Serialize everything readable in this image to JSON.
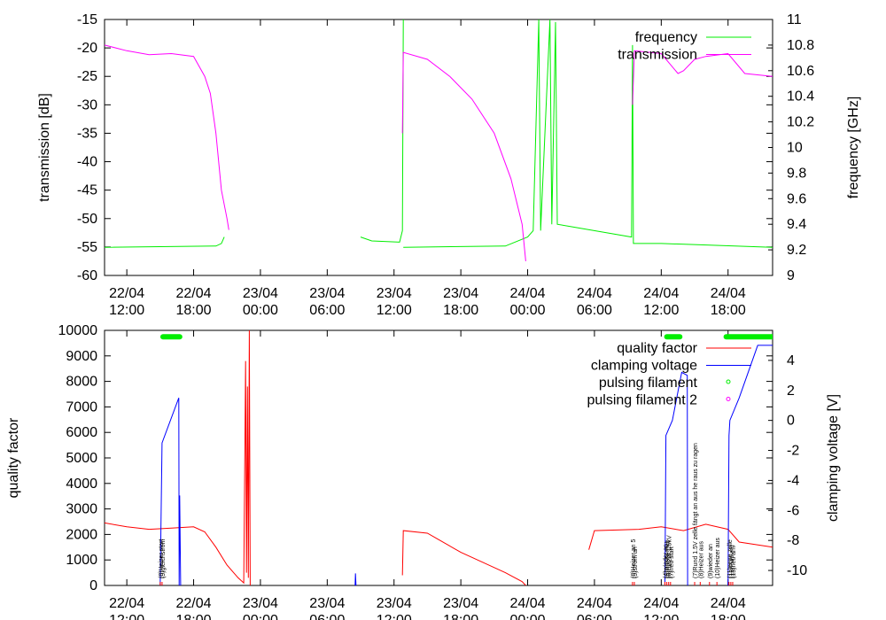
{
  "colors": {
    "frequency": "#00ee00",
    "transmission": "#ff00ff",
    "quality_factor": "#ff0000",
    "clamping_voltage": "#0000ff",
    "pulsing_filament": "#00ee00",
    "pulsing_filament_2": "#ff00ff"
  },
  "x_ticks": [
    {
      "date": "22/04",
      "time": "12:00"
    },
    {
      "date": "22/04",
      "time": "18:00"
    },
    {
      "date": "23/04",
      "time": "00:00"
    },
    {
      "date": "23/04",
      "time": "06:00"
    },
    {
      "date": "23/04",
      "time": "12:00"
    },
    {
      "date": "23/04",
      "time": "18:00"
    },
    {
      "date": "24/04",
      "time": "00:00"
    },
    {
      "date": "24/04",
      "time": "06:00"
    },
    {
      "date": "24/04",
      "time": "12:00"
    },
    {
      "date": "24/04",
      "time": "18:00"
    }
  ],
  "chart_data": [
    {
      "type": "line",
      "xlim": [
        "22/04 10:00",
        "24/04 22:00"
      ],
      "ylabel": "transmission [dB]",
      "y2label": "frequency [GHz]",
      "ylim": [
        -60,
        -15
      ],
      "y2lim": [
        9,
        11
      ],
      "y_ticks": [
        "-15",
        "-20",
        "-25",
        "-30",
        "-35",
        "-40",
        "-45",
        "-50",
        "-55",
        "-60"
      ],
      "y2_ticks": [
        "11",
        "10.8",
        "10.6",
        "10.4",
        "10.2",
        "10",
        "9.8",
        "9.6",
        "9.4",
        "9.2",
        "9"
      ],
      "legend": "top-right",
      "series": [
        {
          "name": "frequency",
          "axis": "y2",
          "segments": [
            [
              [
                "22/04 10:00",
                9.22
              ],
              [
                "22/04 20:00",
                9.23
              ],
              [
                "22/04 20:30",
                9.25
              ],
              [
                "22/04 20:45",
                9.3
              ]
            ],
            [
              [
                "23/04 09:00",
                9.3
              ],
              [
                "23/04 10:00",
                9.27
              ],
              [
                "23/04 12:30",
                9.26
              ],
              [
                "23/04 12:45",
                9.35
              ],
              [
                "23/04 12:50",
                11.0
              ]
            ],
            [
              [
                "23/04 12:50",
                9.22
              ],
              [
                "23/04 22:00",
                9.23
              ],
              [
                "24/04 00:00",
                9.3
              ],
              [
                "24/04 00:30",
                9.35
              ],
              [
                "24/04 01:00",
                11.0
              ],
              [
                "24/04 01:10",
                9.35
              ],
              [
                "24/04 02:00",
                11.0
              ],
              [
                "24/04 02:10",
                9.4
              ],
              [
                "24/04 02:30",
                10.98
              ],
              [
                "24/04 02:40",
                9.4
              ],
              [
                "24/04 08:00",
                9.32
              ],
              [
                "24/04 09:20",
                9.3
              ],
              [
                "24/04 09:25",
                10.8
              ],
              [
                "24/04 09:30",
                9.25
              ],
              [
                "24/04 12:00",
                9.25
              ],
              [
                "24/04 22:00",
                9.22
              ]
            ]
          ]
        },
        {
          "name": "transmission",
          "axis": "y",
          "segments": [
            [
              [
                "22/04 10:00",
                -19.5
              ],
              [
                "22/04 12:00",
                -20.5
              ],
              [
                "22/04 14:00",
                -21.2
              ],
              [
                "22/04 16:00",
                -21.0
              ],
              [
                "22/04 18:00",
                -21.5
              ],
              [
                "22/04 19:00",
                -25
              ],
              [
                "22/04 19:30",
                -28
              ],
              [
                "22/04 20:00",
                -35
              ],
              [
                "22/04 20:30",
                -45
              ],
              [
                "22/04 21:00",
                -50
              ],
              [
                "22/04 21:10",
                -52
              ]
            ],
            [
              [
                "23/04 12:45",
                -35
              ],
              [
                "23/04 12:50",
                -20.8
              ],
              [
                "23/04 15:00",
                -22
              ],
              [
                "23/04 17:00",
                -25
              ],
              [
                "23/04 19:00",
                -29
              ],
              [
                "23/04 21:00",
                -35
              ],
              [
                "23/04 22:30",
                -43
              ],
              [
                "23/04 23:30",
                -51
              ],
              [
                "23/04 23:50",
                -57.5
              ]
            ],
            [
              [
                "24/04 09:25",
                -30
              ],
              [
                "24/04 09:35",
                -20.5
              ],
              [
                "24/04 12:00",
                -21
              ],
              [
                "24/04 13:30",
                -24.5
              ],
              [
                "24/04 14:00",
                -24
              ],
              [
                "24/04 15:00",
                -22
              ],
              [
                "24/04 16:00",
                -21.5
              ],
              [
                "24/04 18:00",
                -21
              ],
              [
                "24/04 19:30",
                -24.5
              ],
              [
                "24/04 22:00",
                -25
              ]
            ]
          ]
        }
      ]
    },
    {
      "type": "line",
      "xlim": [
        "22/04 10:00",
        "24/04 22:00"
      ],
      "ylabel": "quality factor",
      "y2label": "clamping voltage [V]",
      "ylim": [
        0,
        10000
      ],
      "y2lim": [
        -11,
        6
      ],
      "y_ticks": [
        "10000",
        "9000",
        "8000",
        "7000",
        "6000",
        "5000",
        "4000",
        "3000",
        "2000",
        "1000",
        "0"
      ],
      "y2_ticks": [
        "4",
        "2",
        "0",
        "-2",
        "-4",
        "-6",
        "-8",
        "-10"
      ],
      "legend": "top-right",
      "series": [
        {
          "name": "quality factor",
          "axis": "y",
          "segments": [
            [
              [
                "22/04 10:00",
                2450
              ],
              [
                "22/04 12:00",
                2300
              ],
              [
                "22/04 14:00",
                2200
              ],
              [
                "22/04 16:00",
                2250
              ],
              [
                "22/04 18:00",
                2300
              ],
              [
                "22/04 19:00",
                2100
              ],
              [
                "22/04 20:00",
                1500
              ],
              [
                "22/04 21:00",
                800
              ],
              [
                "22/04 22:00",
                300
              ],
              [
                "22/04 22:30",
                100
              ],
              [
                "22/04 22:40",
                8800
              ],
              [
                "22/04 22:45",
                500
              ],
              [
                "22/04 22:50",
                7800
              ],
              [
                "22/04 22:55",
                300
              ],
              [
                "22/04 23:00",
                10000
              ],
              [
                "22/04 23:05",
                0
              ]
            ],
            [
              [
                "23/04 12:45",
                400
              ],
              [
                "23/04 12:50",
                2150
              ],
              [
                "23/04 15:00",
                2050
              ],
              [
                "23/04 16:00",
                1800
              ],
              [
                "23/04 18:00",
                1300
              ],
              [
                "23/04 20:00",
                900
              ],
              [
                "23/04 22:00",
                500
              ],
              [
                "23/04 23:30",
                150
              ],
              [
                "23/04 23:50",
                0
              ]
            ],
            [
              [
                "24/04 05:30",
                1400
              ],
              [
                "24/04 06:00",
                2150
              ],
              [
                "24/04 10:00",
                2200
              ],
              [
                "24/04 12:00",
                2300
              ],
              [
                "24/04 14:00",
                2150
              ],
              [
                "24/04 16:00",
                2400
              ],
              [
                "24/04 18:00",
                2200
              ],
              [
                "24/04 19:00",
                1700
              ],
              [
                "24/04 22:00",
                1500
              ]
            ]
          ]
        },
        {
          "name": "clamping voltage",
          "axis": "y2",
          "segments": [
            [
              [
                "22/04 15:00",
                -11
              ],
              [
                "22/04 15:05",
                -6
              ],
              [
                "22/04 15:10",
                -1.5
              ],
              [
                "22/04 16:40",
                1.5
              ],
              [
                "22/04 16:42",
                -11
              ],
              [
                "22/04 16:45",
                -5
              ],
              [
                "22/04 16:50",
                -11
              ]
            ],
            [
              [
                "23/04 08:30",
                -11
              ],
              [
                "23/04 08:32",
                -10.2
              ],
              [
                "23/04 08:35",
                -11
              ]
            ],
            [
              [
                "24/04 12:20",
                -11
              ],
              [
                "24/04 12:25",
                -1
              ],
              [
                "24/04 13:00",
                0
              ],
              [
                "24/04 13:50",
                3.2
              ],
              [
                "24/04 14:20",
                3
              ],
              [
                "24/04 14:22",
                -11
              ]
            ],
            [
              [
                "24/04 18:00",
                -11
              ],
              [
                "24/04 18:05",
                -1
              ],
              [
                "24/04 18:10",
                0
              ],
              [
                "24/04 19:00",
                1.5
              ],
              [
                "24/04 20:40",
                5
              ],
              [
                "24/04 22:00",
                5
              ]
            ]
          ]
        },
        {
          "name": "pulsing filament",
          "axis": "bars",
          "segments": [
            [
              [
                "22/04 15:15",
                9750
              ],
              [
                "22/04 16:45",
                9750
              ]
            ],
            [
              [
                "24/04 12:30",
                9750
              ],
              [
                "24/04 13:40",
                9750
              ]
            ],
            [
              [
                "24/04 17:50",
                9750
              ],
              [
                "24/04 22:00",
                9750
              ]
            ]
          ]
        },
        {
          "name": "pulsing filament 2",
          "axis": "bars",
          "segments": []
        }
      ],
      "annotations": [
        {
          "x": "22/04 15:00",
          "text": "(8)Heizer start"
        },
        {
          "x": "22/04 15:10",
          "text": "(9)gleichstrom"
        },
        {
          "x": "24/04 09:25",
          "text": "(8)Heizer an 5"
        },
        {
          "x": "24/04 09:35",
          "text": "(9)strom an"
        },
        {
          "x": "24/04 12:20",
          "text": "(4)wieder an"
        },
        {
          "x": "24/04 12:30",
          "text": "(5)Pulsbetrieb"
        },
        {
          "x": "24/04 12:40",
          "text": "(6)Heizer 1.5kV"
        },
        {
          "x": "24/04 12:50",
          "text": "(7)neu start"
        },
        {
          "x": "24/04 15:00",
          "text": "(7)Rund 1.5V zelle fängt an aus he raus zu ragen"
        },
        {
          "x": "24/04 15:30",
          "text": "(8)Heizer aus"
        },
        {
          "x": "24/04 16:20",
          "text": "(9)wieder an"
        },
        {
          "x": "24/04 17:00",
          "text": "(10)Heizer aus"
        },
        {
          "x": "24/04 18:05",
          "text": "(11)neue zelle"
        },
        {
          "x": "24/04 18:15",
          "text": "(12)Pulsung"
        },
        {
          "x": "24/04 18:25",
          "text": "(13)neu an"
        }
      ]
    }
  ]
}
